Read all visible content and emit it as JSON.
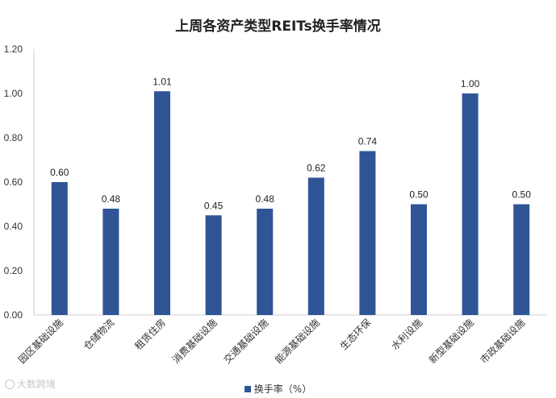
{
  "chart_data": {
    "type": "bar",
    "title": "上周各资产类型REITs换手率情况",
    "categories": [
      "园区基础设施",
      "仓储物流",
      "租赁住房",
      "消费基础设施",
      "交通基础设施",
      "能源基础设施",
      "生态环保",
      "水利设施",
      "新型基础设施",
      "市政基础设施"
    ],
    "series": [
      {
        "name": "换手率（%）",
        "values": [
          0.6,
          0.48,
          1.01,
          0.45,
          0.48,
          0.62,
          0.74,
          0.5,
          1.0,
          0.5
        ]
      }
    ],
    "data_labels": [
      "0.60",
      "0.48",
      "1.01",
      "0.45",
      "0.48",
      "0.62",
      "0.74",
      "0.50",
      "1.00",
      "0.50"
    ],
    "y_ticks": [
      "0.00",
      "0.20",
      "0.40",
      "0.60",
      "0.80",
      "1.00",
      "1.20"
    ],
    "ylim": [
      0,
      1.2
    ],
    "grid": false,
    "legend_position": "bottom",
    "colors": {
      "bar": "#2f5597"
    }
  },
  "watermark": {
    "text": "大数跨境",
    "icon": "circle-logo-icon"
  }
}
